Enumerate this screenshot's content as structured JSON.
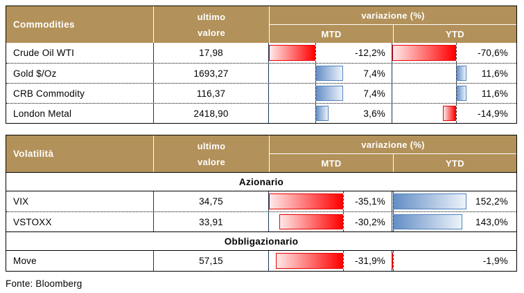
{
  "fonte": "Fonte: Bloomberg",
  "header_labels": {
    "value_line1": "ultimo",
    "value_line2": "valore",
    "variation": "variazione (%)",
    "mtd": "MTD",
    "ytd": "YTD"
  },
  "colors": {
    "header_bg": "#B2915A",
    "header_text": "#FFFFFF",
    "col_border": "#17375D",
    "outer_border": "#000000",
    "pos_bar": "#638EC6",
    "pos_bar_border": "#4F81BD",
    "neg_bar": "#FF0000",
    "neg_bar_border": "#E60000"
  },
  "tables": [
    {
      "title": "Commodities",
      "rows": [
        {
          "type": "data",
          "name": "Crude Oil WTI",
          "value": "17,98",
          "mtd": {
            "label": "-12,2%",
            "num": -12.2
          },
          "ytd": {
            "label": "-70,6%",
            "num": -70.6
          }
        },
        {
          "type": "data",
          "name": "Gold $/Oz",
          "value": "1693,27",
          "mtd": {
            "label": "7,4%",
            "num": 7.4
          },
          "ytd": {
            "label": "11,6%",
            "num": 11.6
          }
        },
        {
          "type": "data",
          "name": "CRB Commodity",
          "value": "116,37",
          "mtd": {
            "label": "7,4%",
            "num": 7.4
          },
          "ytd": {
            "label": "11,6%",
            "num": 11.6
          }
        },
        {
          "type": "data",
          "name": "London Metal",
          "value": "2418,90",
          "mtd": {
            "label": "3,6%",
            "num": 3.6
          },
          "ytd": {
            "label": "-14,9%",
            "num": -14.9
          }
        }
      ]
    },
    {
      "title": "Volatilità",
      "rows": [
        {
          "type": "section",
          "label": "Azionario"
        },
        {
          "type": "data",
          "name": "VIX",
          "value": "34,75",
          "mtd": {
            "label": "-35,1%",
            "num": -35.1
          },
          "ytd": {
            "label": "152,2%",
            "num": 152.2
          }
        },
        {
          "type": "data",
          "name": "VSTOXX",
          "value": "33,91",
          "mtd": {
            "label": "-30,2%",
            "num": -30.2
          },
          "ytd": {
            "label": "143,0%",
            "num": 143.0
          }
        },
        {
          "type": "section",
          "label": "Obbligazionario"
        },
        {
          "type": "data",
          "name": "Move",
          "value": "57,15",
          "mtd": {
            "label": "-31,9%",
            "num": -31.9
          },
          "ytd": {
            "label": "-1,9%",
            "num": -1.9
          }
        }
      ]
    }
  ],
  "chart_data": [
    {
      "type": "table",
      "title": "Commodities",
      "columns": [
        "Commodities",
        "ultimo valore",
        "variazione (%) MTD",
        "variazione (%) YTD"
      ],
      "rows": [
        [
          "Crude Oil WTI",
          17.98,
          -12.2,
          -70.6
        ],
        [
          "Gold $/Oz",
          1693.27,
          7.4,
          11.6
        ],
        [
          "CRB Commodity",
          116.37,
          7.4,
          11.6
        ],
        [
          "London Metal",
          2418.9,
          3.6,
          -14.9
        ]
      ],
      "notes": "MTD/YTD cells contain Excel-style gradient data bars: red extending left of a dashed axis for negative values, blue extending right for positive values"
    },
    {
      "type": "table",
      "title": "Volatilità",
      "columns": [
        "Volatilità",
        "ultimo valore",
        "variazione (%) MTD",
        "variazione (%) YTD"
      ],
      "sections": [
        {
          "label": "Azionario",
          "rows": [
            [
              "VIX",
              34.75,
              -35.1,
              152.2
            ],
            [
              "VSTOXX",
              33.91,
              -30.2,
              143.0
            ]
          ]
        },
        {
          "label": "Obbligazionario",
          "rows": [
            [
              "Move",
              57.15,
              -31.9,
              -1.9
            ]
          ]
        }
      ],
      "notes": "Same data-bar formatting as Commodities table; source note below reads Fonte: Bloomberg"
    }
  ]
}
